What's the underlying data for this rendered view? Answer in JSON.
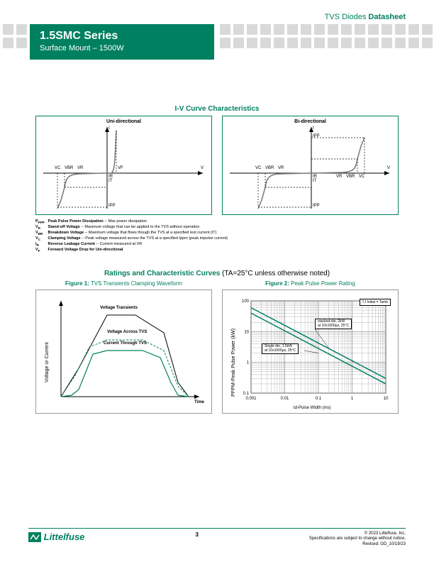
{
  "header": {
    "category": "TVS Diodes",
    "doctype": "Datasheet",
    "series": "1.5SMC Series",
    "subtitle": "Surface Mount – 1500W"
  },
  "iv": {
    "section_title": "I-V Curve Characteristics",
    "uni_label": "Uni-directional",
    "bi_label": "Bi-directional",
    "axis_v": "V",
    "labels": {
      "vc": "VC",
      "vbr": "VBR",
      "vr": "VR",
      "vf": "VF",
      "ir": "IR",
      "it": "IT",
      "ipp": "IPP",
      "i": "I"
    },
    "definitions": [
      {
        "sym": "P",
        "sub": "PPP",
        "term": "Peak Pulse Power Dissipation",
        "desc": " -- Max power dissipation"
      },
      {
        "sym": "V",
        "sub": "R",
        "term": "Stand-off Voltage",
        "desc": " -- Maximum voltage that can be applied to the TVS without operation"
      },
      {
        "sym": "V",
        "sub": "BR",
        "term": "Breakdown Voltage",
        "desc": " -- Maximum voltage that flows though the TVS at a specified test current (IT)"
      },
      {
        "sym": "V",
        "sub": "C",
        "term": "Clamping Voltage",
        "desc": " -- Peak voltage measured across the TVS at a specified Ippm (peak impulse current)"
      },
      {
        "sym": "I",
        "sub": "R",
        "term": "Reverse Leakage Current",
        "desc": " -- Current measured at VR"
      },
      {
        "sym": "V",
        "sub": "F",
        "term": "Forward Voltage Drop for Uni-directional",
        "desc": ""
      }
    ]
  },
  "ratings": {
    "title_green": "Ratings and Characteristic Curves",
    "title_rest": " (TA=25°C unless otherwise noted)",
    "fig1_label": "Figure 1:",
    "fig1_title": " TVS Transients Clamping Waveform",
    "fig2_label": "Figure 2:",
    "fig2_title": " Peak Pulse Power Rating",
    "fig1": {
      "ylabel": "Voltage or Current",
      "xlabel": "Time",
      "trace1": "Voltage Transients",
      "trace2": "Voltage Across TVS",
      "trace3": "Current Through TVS",
      "colors": {
        "transient": "#000000",
        "voltage": "#008060",
        "current": "#008060"
      }
    },
    "fig2": {
      "ylabel": "PPPM-Peak Pulse Power (kW)",
      "xlabel": "td-Pulse Width (ms)",
      "note_tj": "TJ Initial = Tamb",
      "callout1_l1": "stacked-die, 2kW",
      "callout1_l2": "at 10x1000µs, 25°C",
      "callout2_l1": "Single die, 1.5kW",
      "callout2_l2": "at 10x1000µs, 25°C",
      "xlim": [
        0.001,
        10
      ],
      "ylim": [
        0.1,
        100
      ],
      "xticks": [
        "0.001",
        "0.01",
        "0.1",
        "1",
        "10"
      ],
      "yticks": [
        "0.1",
        "1",
        "10",
        "100"
      ],
      "line_color": "#008060",
      "grid_color": "#888888",
      "background": "#ffffff"
    }
  },
  "footer": {
    "logo": "Littelfuse",
    "page": "3",
    "copyright": "© 2023 Littelfuse, Inc.",
    "notice": "Specifications are subject to change without notice.",
    "revised": "Revised: GD_10/19/23"
  },
  "colors": {
    "brand": "#008060",
    "square": "#d9d9d9"
  }
}
